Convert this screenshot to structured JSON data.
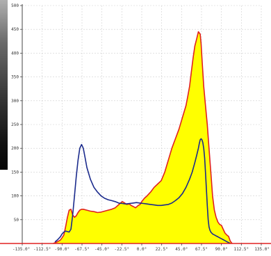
{
  "chart_data": {
    "type": "area",
    "title": "",
    "xlabel": "",
    "ylabel": "",
    "xlim": [
      -135,
      135
    ],
    "ylim": [
      0,
      500
    ],
    "grid": true,
    "legend": "none",
    "x_ticks": [
      -135,
      -112.5,
      -90,
      -67.5,
      -45,
      -22.5,
      0,
      22.5,
      45,
      67.5,
      90,
      112.5,
      135
    ],
    "x_tick_labels": [
      "-135.0°",
      "-112.5°",
      "-90.0°",
      "-67.5°",
      "-45.0°",
      "-22.5°",
      "0.0°",
      "22.5°",
      "45.0°",
      "67.5°",
      "90.0°",
      "112.5°",
      "135.0°"
    ],
    "y_ticks": [
      50,
      100,
      150,
      200,
      250,
      300,
      350,
      400,
      450,
      500
    ],
    "y_tick_labels": [
      "50",
      "100",
      "150",
      "200",
      "250",
      "300",
      "350",
      "400",
      "450",
      "500"
    ],
    "series": [
      {
        "color": "#e02020",
        "fill": "#ffff00",
        "x": [
          -100,
          -96,
          -92,
          -90,
          -88,
          -86,
          -84,
          -82,
          -80,
          -78,
          -76,
          -74,
          -72,
          -70,
          -68,
          -66,
          -62,
          -58,
          -54,
          -50,
          -46,
          -42,
          -38,
          -34,
          -30,
          -27,
          -24,
          -22,
          -20,
          -17,
          -14,
          -12,
          -10,
          -7,
          -4,
          -2,
          0,
          3,
          6,
          10,
          14,
          18,
          22,
          26,
          30,
          34,
          38,
          42,
          46,
          50,
          52,
          54,
          56,
          58,
          60,
          62,
          64,
          66,
          67,
          68,
          69,
          70,
          72,
          74,
          76,
          78,
          80,
          82,
          84,
          86,
          88,
          90,
          92,
          94,
          96,
          98,
          100,
          102
        ],
        "values": [
          0,
          3,
          7,
          12,
          18,
          35,
          55,
          70,
          72,
          60,
          55,
          58,
          65,
          70,
          72,
          72,
          70,
          68,
          67,
          65,
          66,
          68,
          70,
          72,
          75,
          80,
          85,
          88,
          86,
          82,
          83,
          80,
          78,
          75,
          80,
          82,
          88,
          95,
          100,
          108,
          118,
          125,
          132,
          150,
          175,
          200,
          220,
          240,
          265,
          290,
          310,
          330,
          360,
          390,
          415,
          430,
          445,
          440,
          420,
          390,
          360,
          330,
          290,
          250,
          200,
          150,
          100,
          70,
          55,
          45,
          40,
          38,
          30,
          22,
          18,
          15,
          5,
          0
        ]
      },
      {
        "color": "#1a2a8c",
        "x": [
          -98,
          -95,
          -92,
          -90,
          -88,
          -86,
          -84,
          -82,
          -80,
          -78,
          -76,
          -74,
          -72,
          -70,
          -68,
          -66,
          -64,
          -62,
          -58,
          -54,
          -50,
          -46,
          -42,
          -38,
          -34,
          -30,
          -26,
          -22,
          -18,
          -14,
          -10,
          -6,
          -2,
          2,
          6,
          10,
          14,
          18,
          22,
          26,
          30,
          34,
          38,
          42,
          46,
          50,
          54,
          57,
          60,
          62,
          64,
          65,
          66,
          67,
          68,
          69,
          70,
          71,
          72,
          73,
          74,
          75,
          76,
          77,
          78,
          79,
          80,
          82,
          84,
          86,
          88,
          90,
          92,
          94,
          96,
          98,
          100
        ],
        "values": [
          3,
          8,
          14,
          20,
          24,
          26,
          25,
          24,
          30,
          60,
          100,
          140,
          175,
          200,
          208,
          200,
          180,
          160,
          135,
          118,
          108,
          100,
          95,
          92,
          90,
          88,
          85,
          84,
          83,
          84,
          85,
          86,
          85,
          84,
          83,
          82,
          81,
          80,
          80,
          81,
          82,
          85,
          90,
          96,
          105,
          118,
          135,
          150,
          170,
          185,
          200,
          210,
          218,
          220,
          218,
          212,
          200,
          180,
          150,
          115,
          80,
          50,
          35,
          28,
          24,
          22,
          20,
          18,
          16,
          14,
          12,
          10,
          8,
          6,
          4,
          2,
          0
        ]
      }
    ]
  }
}
